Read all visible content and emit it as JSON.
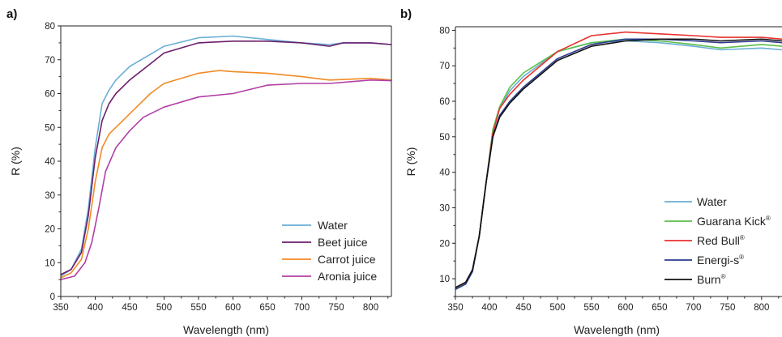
{
  "chart_data": [
    {
      "type": "line",
      "panel_label": "a)",
      "xlabel": "Wavelength (nm)",
      "ylabel": "R (%)",
      "xlim": [
        350,
        830
      ],
      "ylim": [
        0,
        80
      ],
      "xticks": [
        350,
        400,
        450,
        500,
        550,
        600,
        650,
        700,
        750,
        800
      ],
      "yticks": [
        0,
        10,
        20,
        30,
        40,
        50,
        60,
        70,
        80
      ],
      "legend_position": "bottom-right",
      "series": [
        {
          "name": "Water",
          "color": "#6aaed6",
          "points": [
            [
              350,
              6
            ],
            [
              365,
              8
            ],
            [
              380,
              14
            ],
            [
              390,
              26
            ],
            [
              400,
              44
            ],
            [
              410,
              57
            ],
            [
              420,
              61
            ],
            [
              430,
              64
            ],
            [
              450,
              68
            ],
            [
              475,
              71
            ],
            [
              500,
              74
            ],
            [
              550,
              76.5
            ],
            [
              600,
              77
            ],
            [
              650,
              76
            ],
            [
              700,
              75
            ],
            [
              740,
              74.5
            ],
            [
              760,
              75
            ],
            [
              800,
              75
            ],
            [
              830,
              74.5
            ]
          ]
        },
        {
          "name": "Beet juice",
          "color": "#6b1f6b",
          "points": [
            [
              350,
              6.5
            ],
            [
              365,
              8
            ],
            [
              380,
              13
            ],
            [
              390,
              24
            ],
            [
              400,
              41
            ],
            [
              410,
              52
            ],
            [
              420,
              57
            ],
            [
              430,
              60
            ],
            [
              450,
              64
            ],
            [
              475,
              68
            ],
            [
              500,
              72
            ],
            [
              550,
              75
            ],
            [
              600,
              75.5
            ],
            [
              650,
              75.5
            ],
            [
              700,
              75
            ],
            [
              740,
              74
            ],
            [
              760,
              75
            ],
            [
              800,
              75
            ],
            [
              830,
              74.5
            ]
          ]
        },
        {
          "name": "Carrot juice",
          "color": "#f28a24",
          "points": [
            [
              350,
              5.5
            ],
            [
              365,
              7
            ],
            [
              380,
              11
            ],
            [
              390,
              20
            ],
            [
              400,
              34
            ],
            [
              410,
              44
            ],
            [
              420,
              48
            ],
            [
              440,
              52
            ],
            [
              460,
              56
            ],
            [
              480,
              60
            ],
            [
              500,
              63
            ],
            [
              550,
              66
            ],
            [
              580,
              66.8
            ],
            [
              600,
              66.5
            ],
            [
              650,
              66
            ],
            [
              700,
              65
            ],
            [
              740,
              64
            ],
            [
              800,
              64.5
            ],
            [
              830,
              64
            ]
          ]
        },
        {
          "name": "Aronia juice",
          "color": "#b13fa6",
          "points": [
            [
              350,
              5
            ],
            [
              370,
              6
            ],
            [
              385,
              10
            ],
            [
              395,
              16
            ],
            [
              405,
              26
            ],
            [
              415,
              37
            ],
            [
              430,
              44
            ],
            [
              450,
              49
            ],
            [
              470,
              53
            ],
            [
              500,
              56
            ],
            [
              550,
              59
            ],
            [
              600,
              60
            ],
            [
              650,
              62.5
            ],
            [
              700,
              63
            ],
            [
              740,
              63
            ],
            [
              800,
              64
            ],
            [
              830,
              63.8
            ]
          ]
        }
      ]
    },
    {
      "type": "line",
      "panel_label": "b)",
      "xlabel": "Wavelength (nm)",
      "ylabel": "R (%)",
      "xlim": [
        350,
        830
      ],
      "ylim": [
        5,
        81
      ],
      "xticks": [
        350,
        400,
        450,
        500,
        550,
        600,
        650,
        700,
        750,
        800
      ],
      "yticks": [
        10,
        20,
        30,
        40,
        50,
        60,
        70,
        80
      ],
      "legend_position": "bottom-right",
      "series": [
        {
          "name": "Water",
          "color": "#6aaed6",
          "points": [
            [
              350,
              7
            ],
            [
              365,
              8.5
            ],
            [
              375,
              12
            ],
            [
              385,
              22
            ],
            [
              395,
              37
            ],
            [
              405,
              52
            ],
            [
              415,
              58
            ],
            [
              430,
              63
            ],
            [
              450,
              67
            ],
            [
              475,
              70.5
            ],
            [
              500,
              74
            ],
            [
              550,
              76.5
            ],
            [
              600,
              77
            ],
            [
              650,
              76.5
            ],
            [
              700,
              75.5
            ],
            [
              740,
              74.5
            ],
            [
              800,
              75
            ],
            [
              830,
              74.5
            ]
          ]
        },
        {
          "name": "Guarana Kick®",
          "color": "#5cbf4a",
          "points": [
            [
              350,
              7
            ],
            [
              365,
              8.5
            ],
            [
              375,
              12
            ],
            [
              385,
              22
            ],
            [
              395,
              37
            ],
            [
              405,
              52
            ],
            [
              415,
              58.5
            ],
            [
              430,
              64
            ],
            [
              450,
              68
            ],
            [
              475,
              71
            ],
            [
              500,
              74
            ],
            [
              550,
              76.5
            ],
            [
              600,
              77.5
            ],
            [
              650,
              77
            ],
            [
              700,
              76
            ],
            [
              740,
              75
            ],
            [
              800,
              76
            ],
            [
              830,
              75.5
            ]
          ]
        },
        {
          "name": "Red Bull®",
          "color": "#e8312f",
          "points": [
            [
              350,
              7.5
            ],
            [
              365,
              9
            ],
            [
              375,
              12.5
            ],
            [
              385,
              22
            ],
            [
              395,
              37
            ],
            [
              405,
              51
            ],
            [
              415,
              58
            ],
            [
              430,
              62
            ],
            [
              450,
              66
            ],
            [
              475,
              70
            ],
            [
              500,
              74
            ],
            [
              550,
              78.5
            ],
            [
              600,
              79.5
            ],
            [
              650,
              79
            ],
            [
              700,
              78.5
            ],
            [
              740,
              78
            ],
            [
              800,
              78
            ],
            [
              830,
              77.5
            ]
          ]
        },
        {
          "name": "Energi-s®",
          "color": "#2b3a8f",
          "points": [
            [
              350,
              7
            ],
            [
              365,
              8.5
            ],
            [
              375,
              12
            ],
            [
              385,
              22
            ],
            [
              395,
              37
            ],
            [
              405,
              50
            ],
            [
              415,
              56
            ],
            [
              430,
              60
            ],
            [
              450,
              64
            ],
            [
              475,
              68
            ],
            [
              500,
              72
            ],
            [
              550,
              76
            ],
            [
              600,
              77.5
            ],
            [
              650,
              77.5
            ],
            [
              700,
              77
            ],
            [
              740,
              76.5
            ],
            [
              800,
              77
            ],
            [
              830,
              76.5
            ]
          ]
        },
        {
          "name": "Burn®",
          "color": "#111111",
          "points": [
            [
              350,
              7.5
            ],
            [
              365,
              9
            ],
            [
              375,
              12.5
            ],
            [
              385,
              22
            ],
            [
              395,
              37
            ],
            [
              405,
              50
            ],
            [
              415,
              55.5
            ],
            [
              430,
              59.5
            ],
            [
              450,
              63.5
            ],
            [
              475,
              67.5
            ],
            [
              500,
              71.5
            ],
            [
              550,
              75.5
            ],
            [
              600,
              77
            ],
            [
              650,
              77.5
            ],
            [
              700,
              77.5
            ],
            [
              740,
              77
            ],
            [
              800,
              77.5
            ],
            [
              830,
              77
            ]
          ]
        }
      ]
    }
  ]
}
